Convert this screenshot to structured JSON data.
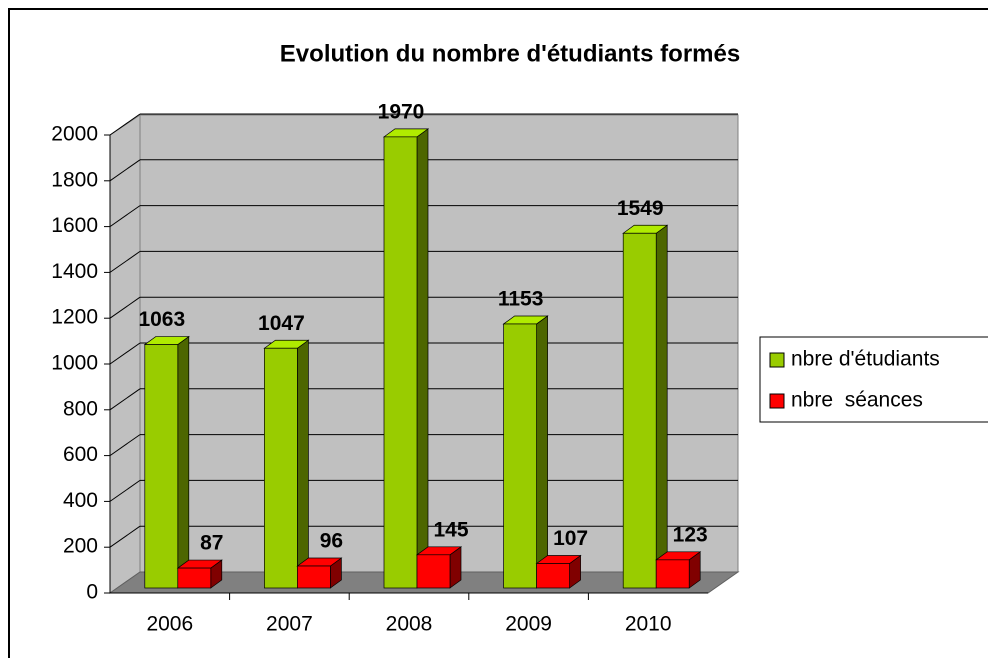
{
  "chart_data": {
    "type": "bar3d",
    "title": "Evolution du nombre d'étudiants formés",
    "categories": [
      "2006",
      "2007",
      "2008",
      "2009",
      "2010"
    ],
    "series": [
      {
        "name": "nbre d'étudiants",
        "color": "#99cc00",
        "values": [
          1063,
          1047,
          1970,
          1153,
          1549
        ]
      },
      {
        "name": "nbre  séances",
        "color": "#ff0000",
        "values": [
          87,
          96,
          145,
          107,
          123
        ]
      }
    ],
    "ylim": [
      0,
      2000
    ],
    "yticks": [
      0,
      200,
      400,
      600,
      800,
      1000,
      1200,
      1400,
      1600,
      1800,
      2000
    ],
    "grid": true,
    "legend": "right"
  }
}
